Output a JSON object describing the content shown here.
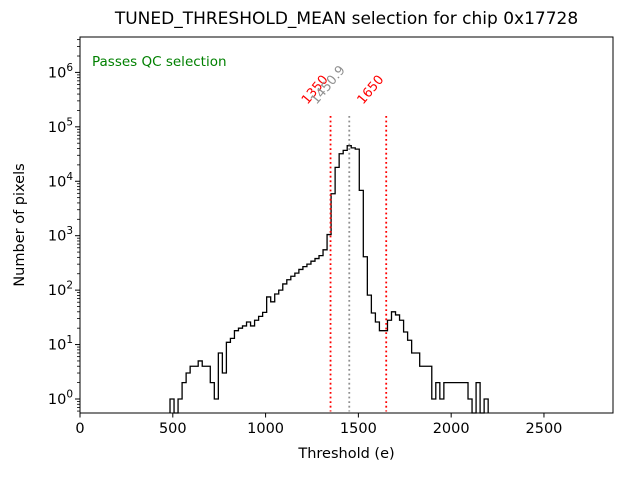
{
  "chart_data": {
    "type": "bar",
    "subtype": "step-histogram",
    "title": "TUNED_THRESHOLD_MEAN selection for chip 0x17728",
    "xlabel": "Threshold (e)",
    "ylabel": "Number of pixels",
    "x_scale": "linear",
    "y_scale": "log",
    "grid": false,
    "xlim": [
      0,
      2872
    ],
    "ylim": [
      0.553,
      4470000
    ],
    "x_ticks": [
      0,
      500,
      1000,
      1500,
      2000,
      2500
    ],
    "y_tick_exponents": [
      0,
      1,
      2,
      3,
      4,
      5,
      6
    ],
    "line_color": "#000000",
    "bin_start": 485,
    "bin_width": 21.7,
    "counts": [
      1,
      0,
      1,
      2,
      3,
      4,
      4,
      5,
      4,
      4,
      2,
      1,
      7,
      3,
      11,
      13,
      18,
      20,
      22,
      26,
      22,
      28,
      33,
      39,
      75,
      61,
      85,
      100,
      130,
      155,
      180,
      205,
      240,
      270,
      300,
      340,
      380,
      430,
      550,
      1050,
      5900,
      18000,
      32000,
      37000,
      45000,
      41000,
      39000,
      6800,
      410,
      81,
      38,
      26,
      18,
      18,
      28,
      40,
      35,
      28,
      17,
      12,
      7,
      7,
      4,
      4,
      4,
      1,
      2,
      1,
      2,
      2,
      2,
      2,
      2,
      2,
      1,
      0,
      2,
      0,
      1
    ],
    "annotations": {
      "qc_status": {
        "label": "Passes QC selection",
        "color": "#008000"
      },
      "vlines": [
        {
          "label": "1350",
          "x": 1350,
          "color": "#ff0000",
          "style": "dotted"
        },
        {
          "label": "1450.9",
          "x": 1450.9,
          "color": "#909090",
          "style": "dotted"
        },
        {
          "label": "1650",
          "x": 1650,
          "color": "#ff0000",
          "style": "dotted"
        }
      ]
    }
  }
}
